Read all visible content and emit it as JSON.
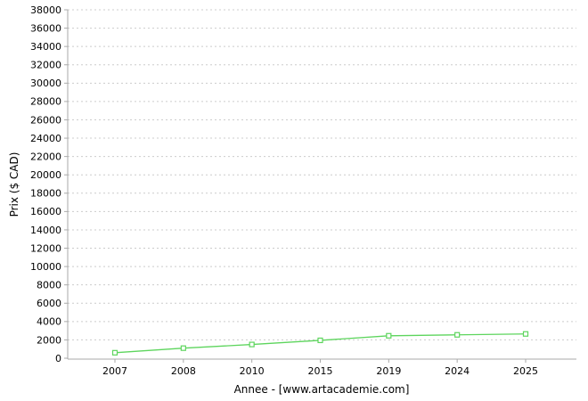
{
  "chart": {
    "xlabel": "Annee - [www.artacademie.com]",
    "ylabel": "Prix ($ CAD)"
  },
  "chart_data": {
    "type": "line",
    "title": "",
    "categories": [
      "2007",
      "2008",
      "2010",
      "2015",
      "2019",
      "2024",
      "2025"
    ],
    "series": [
      {
        "name": "Prix",
        "values": [
          600,
          1100,
          1500,
          1950,
          2450,
          2550,
          2650
        ]
      }
    ],
    "xlabel": "Annee - [www.artacademie.com]",
    "ylabel": "Prix ($ CAD)",
    "ylim": [
      0,
      38000
    ],
    "y_tick_step": 2000,
    "grid": true,
    "legend": "none",
    "colors": {
      "line": "#5dd55d",
      "marker_fill": "#ffffff",
      "grid": "#cccccc",
      "axis": "#aaaaaa",
      "text": "#000000",
      "background": "#ffffff"
    }
  }
}
